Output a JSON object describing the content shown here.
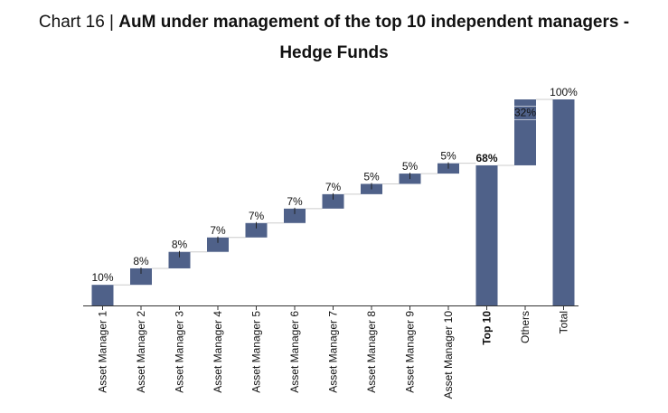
{
  "title": {
    "prefix": "Chart 16 | ",
    "line1": "AuM under management of the top 10 independent managers -",
    "line2": "Hedge Funds"
  },
  "chart_data": {
    "type": "bar",
    "subtype": "waterfall",
    "categories": [
      "Asset Manager 1",
      "Asset Manager 2",
      "Asset Manager 3",
      "Asset Manager 4",
      "Asset Manager 5",
      "Asset Manager 6",
      "Asset Manager 7",
      "Asset Manager 8",
      "Asset Manager 9",
      "Asset Manager 10",
      "Top 10",
      "Others",
      "Total"
    ],
    "values": [
      10,
      8,
      8,
      7,
      7,
      7,
      7,
      5,
      5,
      5,
      68,
      32,
      100
    ],
    "labels": [
      "10%",
      "8%",
      "8%",
      "7%",
      "7%",
      "7%",
      "7%",
      "5%",
      "5%",
      "5%",
      "68%",
      "32%",
      "100%"
    ],
    "bold_categories": [
      "Top 10"
    ],
    "bold_labels": [
      "68%"
    ],
    "ylim": [
      0,
      100
    ],
    "grid": false,
    "legend": "none",
    "colors": {
      "bar": "#4f6189",
      "axis": "#333333",
      "connector": "#cccccc",
      "tick": "#333333"
    }
  }
}
